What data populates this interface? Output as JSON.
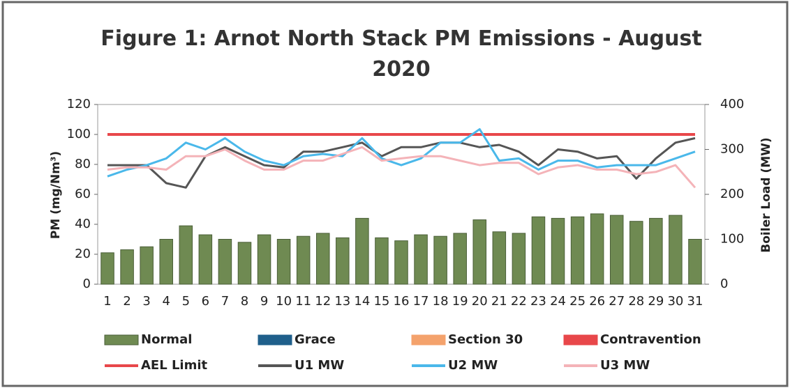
{
  "chart_data": {
    "type": "bar",
    "title": "Figure 1: Arnot North Stack PM Emissions -  August 2020",
    "y_label": "PM (mg/Nm³)",
    "y2_label": "Boiler Load (MW)",
    "categories": [
      "1",
      "2",
      "3",
      "4",
      "5",
      "6",
      "7",
      "8",
      "9",
      "10",
      "11",
      "12",
      "13",
      "14",
      "15",
      "16",
      "17",
      "18",
      "19",
      "20",
      "21",
      "22",
      "23",
      "24",
      "25",
      "26",
      "27",
      "28",
      "29",
      "30",
      "31"
    ],
    "ylim": [
      0,
      120
    ],
    "yticks": [
      0,
      20,
      40,
      60,
      80,
      100,
      120
    ],
    "y2lim": [
      0,
      400
    ],
    "y2ticks": [
      0,
      100,
      200,
      300,
      400
    ],
    "series": [
      {
        "name": "Normal",
        "type": "bar",
        "color": "#6f8a52",
        "values": [
          21,
          23,
          25,
          30,
          39,
          33,
          30,
          28,
          33,
          30,
          32,
          34,
          31,
          44,
          31,
          29,
          33,
          32,
          34,
          43,
          35,
          34,
          45,
          44,
          45,
          47,
          46,
          42,
          44,
          46,
          30
        ]
      },
      {
        "name": "Grace",
        "type": "bar",
        "color": "#1f5f8b",
        "values": [
          null,
          null,
          null,
          null,
          null,
          null,
          null,
          null,
          null,
          null,
          null,
          null,
          null,
          null,
          null,
          null,
          null,
          null,
          null,
          null,
          null,
          null,
          null,
          null,
          null,
          null,
          null,
          null,
          null,
          null,
          null
        ]
      },
      {
        "name": "Section 30",
        "type": "bar",
        "color": "#f4a26c",
        "values": [
          null,
          null,
          null,
          null,
          null,
          null,
          null,
          null,
          null,
          null,
          null,
          null,
          null,
          null,
          null,
          null,
          null,
          null,
          null,
          null,
          null,
          null,
          null,
          null,
          null,
          null,
          null,
          null,
          null,
          null,
          null
        ]
      },
      {
        "name": "Contravention",
        "type": "bar",
        "color": "#e8474a",
        "values": [
          null,
          null,
          null,
          null,
          null,
          null,
          null,
          null,
          null,
          null,
          null,
          null,
          null,
          null,
          null,
          null,
          null,
          null,
          null,
          null,
          null,
          null,
          null,
          null,
          null,
          null,
          null,
          null,
          null,
          null,
          null
        ]
      },
      {
        "name": "AEL Limit",
        "type": "line",
        "color": "#e8474a",
        "values": [
          100,
          100,
          100,
          100,
          100,
          100,
          100,
          100,
          100,
          100,
          100,
          100,
          100,
          100,
          100,
          100,
          100,
          100,
          100,
          100,
          100,
          100,
          100,
          100,
          100,
          100,
          100,
          100,
          100,
          100,
          100
        ]
      },
      {
        "name": "U1 MW",
        "type": "line",
        "axis": "y2",
        "color": "#555555",
        "values": [
          265,
          265,
          265,
          225,
          215,
          285,
          305,
          285,
          265,
          260,
          295,
          295,
          305,
          315,
          285,
          305,
          305,
          315,
          315,
          305,
          310,
          295,
          265,
          300,
          295,
          280,
          285,
          235,
          280,
          315,
          325
        ]
      },
      {
        "name": "U2 MW",
        "type": "line",
        "axis": "y2",
        "color": "#4ab8ea",
        "values": [
          240,
          255,
          265,
          280,
          315,
          300,
          325,
          295,
          275,
          265,
          285,
          290,
          285,
          325,
          280,
          265,
          280,
          315,
          315,
          345,
          275,
          280,
          255,
          275,
          275,
          260,
          265,
          265,
          265,
          280,
          295
        ]
      },
      {
        "name": "U3 MW",
        "type": "line",
        "axis": "y2",
        "color": "#f4b3b8",
        "values": [
          255,
          260,
          260,
          255,
          285,
          285,
          300,
          275,
          255,
          255,
          275,
          275,
          290,
          305,
          275,
          280,
          285,
          285,
          275,
          265,
          270,
          270,
          245,
          260,
          265,
          255,
          255,
          245,
          250,
          265,
          215
        ]
      }
    ]
  }
}
